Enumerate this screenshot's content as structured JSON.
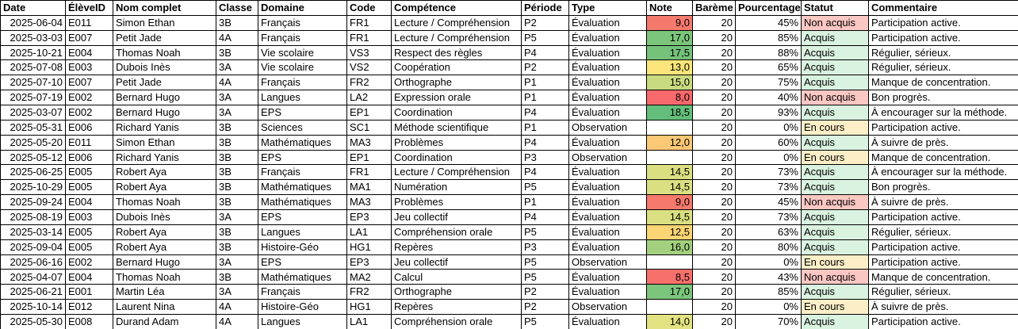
{
  "colors": {
    "border": "#000000",
    "header_bg": "#ffffff",
    "status_fills": {
      "Non acquis": "#FBC7C3",
      "Acquis": "#DAF2E0",
      "En cours": "#FCEFC8"
    },
    "note_scale": {
      "min_red": "#F8696B",
      "mid_yellow": "#FBE57C",
      "max_green": "#63BE7B"
    }
  },
  "table": {
    "columns": [
      {
        "id": "date",
        "label": "Date",
        "align": "right"
      },
      {
        "id": "eleve_id",
        "label": "ÉlèveID",
        "align": "left"
      },
      {
        "id": "nom",
        "label": "Nom complet",
        "align": "left"
      },
      {
        "id": "classe",
        "label": "Classe",
        "align": "left"
      },
      {
        "id": "domaine",
        "label": "Domaine",
        "align": "left"
      },
      {
        "id": "code",
        "label": "Code",
        "align": "left"
      },
      {
        "id": "competence",
        "label": "Compétence",
        "align": "left"
      },
      {
        "id": "periode",
        "label": "Période",
        "align": "left"
      },
      {
        "id": "type",
        "label": "Type",
        "align": "left"
      },
      {
        "id": "note",
        "label": "Note",
        "align": "right"
      },
      {
        "id": "bareme",
        "label": "Barème",
        "align": "right"
      },
      {
        "id": "pourcentage",
        "label": "Pourcentage",
        "align": "right"
      },
      {
        "id": "statut",
        "label": "Statut",
        "align": "left"
      },
      {
        "id": "commentaire",
        "label": "Commentaire",
        "align": "left"
      }
    ],
    "rows": [
      {
        "date": "2025-06-04",
        "eleve_id": "E011",
        "nom": "Simon Ethan",
        "classe": "3B",
        "domaine": "Français",
        "code": "FR1",
        "competence": "Lecture / Compréhension",
        "periode": "P2",
        "type": "Évaluation",
        "note": "9,0",
        "note_color": "#F57A6E",
        "bareme": "20",
        "pourcentage": "45%",
        "statut": "Non acquis",
        "commentaire": "Participation active."
      },
      {
        "date": "2025-03-03",
        "eleve_id": "E007",
        "nom": "Petit Jade",
        "classe": "4A",
        "domaine": "Français",
        "code": "FR1",
        "competence": "Lecture / Compréhension",
        "periode": "P5",
        "type": "Évaluation",
        "note": "17,0",
        "note_color": "#7CC57C",
        "bareme": "20",
        "pourcentage": "85%",
        "statut": "Acquis",
        "commentaire": "Participation active."
      },
      {
        "date": "2025-10-21",
        "eleve_id": "E004",
        "nom": "Thomas Noah",
        "classe": "3B",
        "domaine": "Vie scolaire",
        "code": "VS3",
        "competence": "Respect des règles",
        "periode": "P4",
        "type": "Évaluation",
        "note": "17,5",
        "note_color": "#75C27B",
        "bareme": "20",
        "pourcentage": "88%",
        "statut": "Acquis",
        "commentaire": "Régulier, sérieux."
      },
      {
        "date": "2025-07-08",
        "eleve_id": "E003",
        "nom": "Dubois Inès",
        "classe": "3A",
        "domaine": "Vie scolaire",
        "code": "VS2",
        "competence": "Coopération",
        "periode": "P2",
        "type": "Évaluation",
        "note": "13,0",
        "note_color": "#FBE57C",
        "bareme": "20",
        "pourcentage": "65%",
        "statut": "Acquis",
        "commentaire": "Régulier, sérieux."
      },
      {
        "date": "2025-07-10",
        "eleve_id": "E007",
        "nom": "Petit Jade",
        "classe": "4A",
        "domaine": "Français",
        "code": "FR2",
        "competence": "Orthographe",
        "periode": "P1",
        "type": "Évaluation",
        "note": "15,0",
        "note_color": "#C8DB80",
        "bareme": "20",
        "pourcentage": "75%",
        "statut": "Acquis",
        "commentaire": "Manque de concentration."
      },
      {
        "date": "2025-07-19",
        "eleve_id": "E002",
        "nom": "Bernard Hugo",
        "classe": "3A",
        "domaine": "Langues",
        "code": "LA2",
        "competence": "Expression orale",
        "periode": "P1",
        "type": "Évaluation",
        "note": "8,0",
        "note_color": "#F8696B",
        "bareme": "20",
        "pourcentage": "40%",
        "statut": "Non acquis",
        "commentaire": "Bon progrès."
      },
      {
        "date": "2025-03-07",
        "eleve_id": "E002",
        "nom": "Bernard Hugo",
        "classe": "3A",
        "domaine": "EPS",
        "code": "EP1",
        "competence": "Coordination",
        "periode": "P4",
        "type": "Évaluation",
        "note": "18,5",
        "note_color": "#63BE7B",
        "bareme": "20",
        "pourcentage": "93%",
        "statut": "Acquis",
        "commentaire": "À encourager sur la méthode."
      },
      {
        "date": "2025-05-31",
        "eleve_id": "E006",
        "nom": "Richard Yanis",
        "classe": "3B",
        "domaine": "Sciences",
        "code": "SC1",
        "competence": "Méthode scientifique",
        "periode": "P1",
        "type": "Observation",
        "note": "",
        "note_color": "",
        "bareme": "20",
        "pourcentage": "0%",
        "statut": "En cours",
        "commentaire": "Participation active."
      },
      {
        "date": "2025-05-20",
        "eleve_id": "E011",
        "nom": "Simon Ethan",
        "classe": "3B",
        "domaine": "Mathématiques",
        "code": "MA3",
        "competence": "Problèmes",
        "periode": "P4",
        "type": "Évaluation",
        "note": "12,0",
        "note_color": "#FBC876",
        "bareme": "20",
        "pourcentage": "60%",
        "statut": "Acquis",
        "commentaire": "À suivre de près."
      },
      {
        "date": "2025-05-12",
        "eleve_id": "E006",
        "nom": "Richard Yanis",
        "classe": "3B",
        "domaine": "EPS",
        "code": "EP1",
        "competence": "Coordination",
        "periode": "P3",
        "type": "Observation",
        "note": "",
        "note_color": "",
        "bareme": "20",
        "pourcentage": "0%",
        "statut": "En cours",
        "commentaire": "Manque de concentration."
      },
      {
        "date": "2025-06-25",
        "eleve_id": "E005",
        "nom": "Robert Aya",
        "classe": "3B",
        "domaine": "Français",
        "code": "FR1",
        "competence": "Lecture / Compréhension",
        "periode": "P4",
        "type": "Évaluation",
        "note": "14,5",
        "note_color": "#DAE081",
        "bareme": "20",
        "pourcentage": "73%",
        "statut": "Acquis",
        "commentaire": "À encourager sur la méthode."
      },
      {
        "date": "2025-10-29",
        "eleve_id": "E005",
        "nom": "Robert Aya",
        "classe": "3B",
        "domaine": "Mathématiques",
        "code": "MA1",
        "competence": "Numération",
        "periode": "P5",
        "type": "Évaluation",
        "note": "14,5",
        "note_color": "#DAE081",
        "bareme": "20",
        "pourcentage": "73%",
        "statut": "Acquis",
        "commentaire": "Bon progrès."
      },
      {
        "date": "2025-09-24",
        "eleve_id": "E004",
        "nom": "Thomas Noah",
        "classe": "3B",
        "domaine": "Mathématiques",
        "code": "MA3",
        "competence": "Problèmes",
        "periode": "P1",
        "type": "Évaluation",
        "note": "9,0",
        "note_color": "#F5796D",
        "bareme": "20",
        "pourcentage": "45%",
        "statut": "Non acquis",
        "commentaire": "À suivre de près."
      },
      {
        "date": "2025-08-19",
        "eleve_id": "E003",
        "nom": "Dubois Inès",
        "classe": "3A",
        "domaine": "EPS",
        "code": "EP3",
        "competence": "Jeu collectif",
        "periode": "P4",
        "type": "Évaluation",
        "note": "14,5",
        "note_color": "#DAE081",
        "bareme": "20",
        "pourcentage": "73%",
        "statut": "Acquis",
        "commentaire": "Participation active."
      },
      {
        "date": "2025-03-14",
        "eleve_id": "E005",
        "nom": "Robert Aya",
        "classe": "3B",
        "domaine": "Langues",
        "code": "LA1",
        "competence": "Compréhension orale",
        "periode": "P5",
        "type": "Évaluation",
        "note": "12,5",
        "note_color": "#FBD474",
        "bareme": "20",
        "pourcentage": "63%",
        "statut": "Acquis",
        "commentaire": "Régulier, sérieux."
      },
      {
        "date": "2025-09-04",
        "eleve_id": "E005",
        "nom": "Robert Aya",
        "classe": "3B",
        "domaine": "Histoire-Géo",
        "code": "HG1",
        "competence": "Repères",
        "periode": "P3",
        "type": "Évaluation",
        "note": "16,0",
        "note_color": "#A3D07E",
        "bareme": "20",
        "pourcentage": "80%",
        "statut": "Acquis",
        "commentaire": "Participation active."
      },
      {
        "date": "2025-06-16",
        "eleve_id": "E002",
        "nom": "Bernard Hugo",
        "classe": "3A",
        "domaine": "EPS",
        "code": "EP3",
        "competence": "Jeu collectif",
        "periode": "P5",
        "type": "Observation",
        "note": "",
        "note_color": "",
        "bareme": "20",
        "pourcentage": "0%",
        "statut": "En cours",
        "commentaire": "Participation active."
      },
      {
        "date": "2025-04-07",
        "eleve_id": "E004",
        "nom": "Thomas Noah",
        "classe": "3B",
        "domaine": "Mathématiques",
        "code": "MA2",
        "competence": "Calcul",
        "periode": "P5",
        "type": "Évaluation",
        "note": "8,5",
        "note_color": "#F7706C",
        "bareme": "20",
        "pourcentage": "43%",
        "statut": "Non acquis",
        "commentaire": "Manque de concentration."
      },
      {
        "date": "2025-06-21",
        "eleve_id": "E001",
        "nom": "Martin Léa",
        "classe": "3A",
        "domaine": "Français",
        "code": "FR2",
        "competence": "Orthographe",
        "periode": "P2",
        "type": "Évaluation",
        "note": "17,0",
        "note_color": "#7CC57C",
        "bareme": "20",
        "pourcentage": "85%",
        "statut": "Acquis",
        "commentaire": "Régulier, sérieux."
      },
      {
        "date": "2025-10-14",
        "eleve_id": "E012",
        "nom": "Laurent Nina",
        "classe": "4A",
        "domaine": "Histoire-Géo",
        "code": "HG1",
        "competence": "Repères",
        "periode": "P2",
        "type": "Observation",
        "note": "",
        "note_color": "",
        "bareme": "20",
        "pourcentage": "0%",
        "statut": "En cours",
        "commentaire": "À suivre de près."
      },
      {
        "date": "2025-05-30",
        "eleve_id": "E008",
        "nom": "Durand Adam",
        "classe": "4A",
        "domaine": "Langues",
        "code": "LA1",
        "competence": "Compréhension orale",
        "periode": "P5",
        "type": "Évaluation",
        "note": "14,0",
        "note_color": "#E2E282",
        "bareme": "20",
        "pourcentage": "70%",
        "statut": "Acquis",
        "commentaire": "Participation active."
      }
    ]
  }
}
